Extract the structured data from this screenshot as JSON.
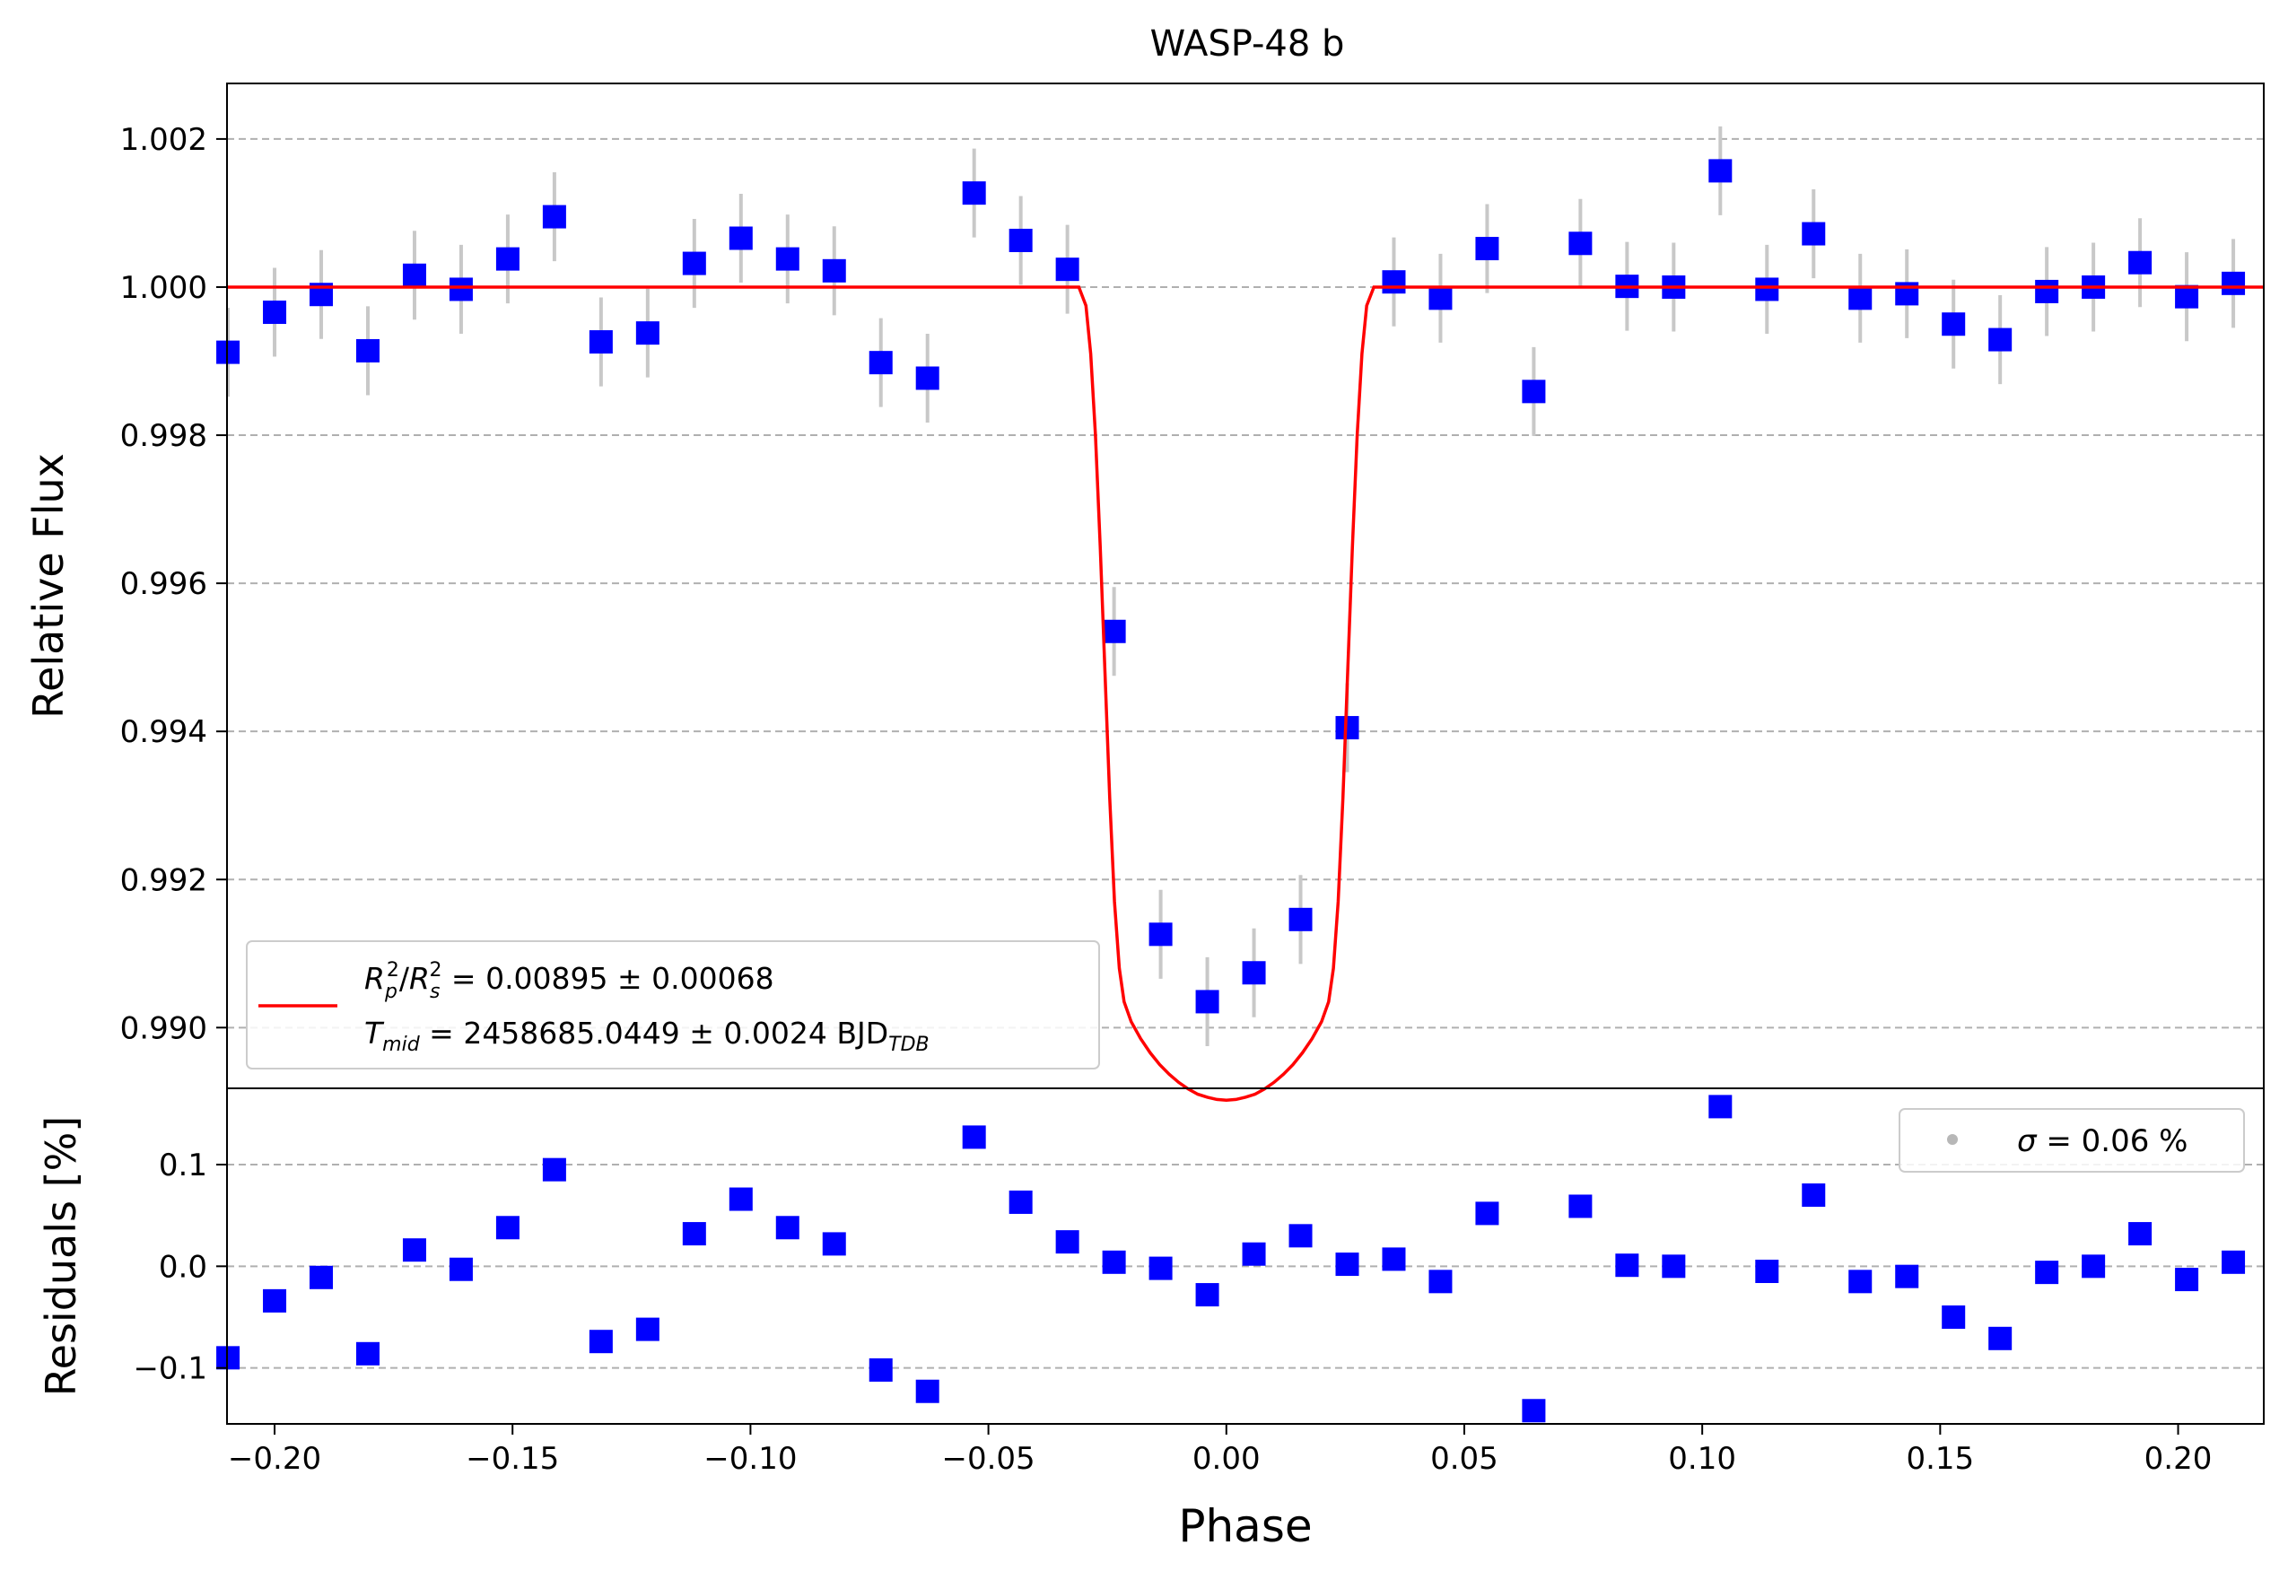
{
  "chart_data": [
    {
      "panel": "main",
      "type": "scatter",
      "title": "WASP-48 b",
      "xlabel": "",
      "ylabel": "Relative Flux",
      "xlim": [
        -0.21,
        0.218
      ],
      "ylim": [
        0.98918,
        1.00275
      ],
      "yticks": [
        0.99,
        0.992,
        0.994,
        0.996,
        0.998,
        1.0,
        1.002
      ],
      "ytick_labels": [
        "0.990",
        "0.992",
        "0.994",
        "0.996",
        "0.998",
        "1.000",
        "1.002"
      ],
      "grid": "y-dashed",
      "legend": {
        "placement": "lower-left",
        "entries": [
          {
            "line1_sym": "R",
            "line1_sub": "p",
            "line1_sup": "2",
            "line1_slash": "/",
            "line1_sym2": "R",
            "line1_sub2": "s",
            "line1_sup2": "2",
            "line1_rest": " = 0.00895 ± 0.00068"
          },
          {
            "line2_sym": "T",
            "line2_sub": "mid",
            "line2_rest": " = 2458685.0449 ± 0.0024 BJD",
            "line2_sub_end": "TDB"
          }
        ]
      },
      "colors": {
        "points": "#0000ff",
        "errorbars": "#c8c8c8",
        "model": "#ff0000",
        "grid": "#b0b0b0"
      },
      "series": [
        {
          "kind": "binned-data",
          "points": [
            {
              "x": -0.2098,
              "y": 0.99912,
              "err": 0.0006
            },
            {
              "x": -0.2,
              "y": 0.99966,
              "err": 0.0006
            },
            {
              "x": -0.1902,
              "y": 0.9999,
              "err": 0.0006
            },
            {
              "x": -0.1804,
              "y": 0.99914,
              "err": 0.0006
            },
            {
              "x": -0.1706,
              "y": 1.00016,
              "err": 0.0006
            },
            {
              "x": -0.1608,
              "y": 0.99997,
              "err": 0.0006
            },
            {
              "x": -0.151,
              "y": 1.00038,
              "err": 0.0006
            },
            {
              "x": -0.1412,
              "y": 1.00095,
              "err": 0.0006
            },
            {
              "x": -0.1314,
              "y": 0.99926,
              "err": 0.0006
            },
            {
              "x": -0.1216,
              "y": 0.99938,
              "err": 0.0006
            },
            {
              "x": -0.1118,
              "y": 1.00032,
              "err": 0.0006
            },
            {
              "x": -0.102,
              "y": 1.00066,
              "err": 0.0006
            },
            {
              "x": -0.0922,
              "y": 1.00038,
              "err": 0.0006
            },
            {
              "x": -0.0824,
              "y": 1.00022,
              "err": 0.0006
            },
            {
              "x": -0.0726,
              "y": 0.99898,
              "err": 0.0006
            },
            {
              "x": -0.0628,
              "y": 0.99877,
              "err": 0.0006
            },
            {
              "x": -0.053,
              "y": 1.00127,
              "err": 0.0006
            },
            {
              "x": -0.0432,
              "y": 1.00063,
              "err": 0.0006
            },
            {
              "x": -0.0334,
              "y": 1.00024,
              "err": 0.0006
            },
            {
              "x": -0.0236,
              "y": 0.99535,
              "err": 0.0006
            },
            {
              "x": -0.0138,
              "y": 0.99126,
              "err": 0.0006
            },
            {
              "x": -0.004,
              "y": 0.99035,
              "err": 0.0006
            },
            {
              "x": 0.0058,
              "y": 0.99074,
              "err": 0.0006
            },
            {
              "x": 0.0156,
              "y": 0.99146,
              "err": 0.0006
            },
            {
              "x": 0.0254,
              "y": 0.99405,
              "err": 0.0006
            },
            {
              "x": 0.0352,
              "y": 1.00007,
              "err": 0.0006
            },
            {
              "x": 0.045,
              "y": 0.99985,
              "err": 0.0006
            },
            {
              "x": 0.0548,
              "y": 1.00052,
              "err": 0.0006
            },
            {
              "x": 0.0646,
              "y": 0.99859,
              "err": 0.0006
            },
            {
              "x": 0.0744,
              "y": 1.00059,
              "err": 0.0006
            },
            {
              "x": 0.0842,
              "y": 1.00001,
              "err": 0.0006
            },
            {
              "x": 0.094,
              "y": 1.0,
              "err": 0.0006
            },
            {
              "x": 0.1038,
              "y": 1.00157,
              "err": 0.0006
            },
            {
              "x": 0.1136,
              "y": 0.99997,
              "err": 0.0006
            },
            {
              "x": 0.1234,
              "y": 1.00072,
              "err": 0.0006
            },
            {
              "x": 0.1332,
              "y": 0.99985,
              "err": 0.0006
            },
            {
              "x": 0.143,
              "y": 0.99991,
              "err": 0.0006
            },
            {
              "x": 0.1528,
              "y": 0.9995,
              "err": 0.0006
            },
            {
              "x": 0.1626,
              "y": 0.99929,
              "err": 0.0006
            },
            {
              "x": 0.1724,
              "y": 0.99994,
              "err": 0.0006
            },
            {
              "x": 0.1822,
              "y": 1.0,
              "err": 0.0006
            },
            {
              "x": 0.192,
              "y": 1.00033,
              "err": 0.0006
            },
            {
              "x": 0.2018,
              "y": 0.99987,
              "err": 0.0006
            },
            {
              "x": 0.2116,
              "y": 1.00005,
              "err": 0.0006
            }
          ]
        },
        {
          "kind": "model",
          "x": [
            -0.21,
            -0.031,
            -0.0295,
            -0.0285,
            -0.0275,
            -0.0265,
            -0.0255,
            -0.0245,
            -0.0235,
            -0.0225,
            -0.0215,
            -0.02,
            -0.018,
            -0.016,
            -0.014,
            -0.012,
            -0.01,
            -0.008,
            -0.006,
            -0.004,
            -0.002,
            0.0,
            0.002,
            0.004,
            0.006,
            0.008,
            0.01,
            0.012,
            0.014,
            0.016,
            0.018,
            0.02,
            0.0215,
            0.0225,
            0.0235,
            0.0245,
            0.0255,
            0.0265,
            0.0275,
            0.0285,
            0.0295,
            0.031,
            0.218
          ],
          "y": [
            1.0,
            1.0,
            0.99975,
            0.9991,
            0.998,
            0.9965,
            0.9948,
            0.9931,
            0.9917,
            0.9908,
            0.99035,
            0.99008,
            0.98985,
            0.98966,
            0.9895,
            0.98937,
            0.98926,
            0.98917,
            0.9891,
            0.98906,
            0.98903,
            0.98902,
            0.98903,
            0.98906,
            0.9891,
            0.98917,
            0.98926,
            0.98937,
            0.9895,
            0.98966,
            0.98985,
            0.99008,
            0.99035,
            0.9908,
            0.9917,
            0.9931,
            0.9948,
            0.9965,
            0.998,
            0.9991,
            0.99975,
            1.0,
            1.0
          ]
        }
      ]
    },
    {
      "panel": "residuals",
      "type": "scatter",
      "xlabel": "Phase",
      "ylabel": "Residuals [%]",
      "xlim": [
        -0.21,
        0.218
      ],
      "ylim": [
        -0.155,
        0.175
      ],
      "yticks": [
        -0.1,
        0.0,
        0.1
      ],
      "ytick_labels": [
        "−0.1",
        "0.0",
        "0.1"
      ],
      "xticks": [
        -0.2,
        -0.15,
        -0.1,
        -0.05,
        0.0,
        0.05,
        0.1,
        0.15,
        0.2
      ],
      "xtick_labels": [
        "−0.20",
        "−0.15",
        "−0.10",
        "−0.05",
        "0.00",
        "0.05",
        "0.10",
        "0.15",
        "0.20"
      ],
      "grid": "y-dashed",
      "legend": {
        "placement": "upper-right",
        "sigma_symbol": "σ",
        "label_rest": " = 0.06 %"
      },
      "x": [
        -0.2098,
        -0.2,
        -0.1902,
        -0.1804,
        -0.1706,
        -0.1608,
        -0.151,
        -0.1412,
        -0.1314,
        -0.1216,
        -0.1118,
        -0.102,
        -0.0922,
        -0.0824,
        -0.0726,
        -0.0628,
        -0.053,
        -0.0432,
        -0.0334,
        -0.0236,
        -0.0138,
        -0.004,
        0.0058,
        0.0156,
        0.0254,
        0.0352,
        0.045,
        0.0548,
        0.0646,
        0.0744,
        0.0842,
        0.094,
        0.1038,
        0.1136,
        0.1234,
        0.1332,
        0.143,
        0.1528,
        0.1626,
        0.1724,
        0.1822,
        0.192,
        0.2018,
        0.2116
      ],
      "values": [
        -0.09,
        -0.034,
        -0.011,
        -0.086,
        0.016,
        -0.003,
        0.038,
        0.095,
        -0.074,
        -0.062,
        0.032,
        0.066,
        0.038,
        0.022,
        -0.102,
        -0.123,
        0.127,
        0.063,
        0.024,
        0.004,
        -0.002,
        -0.028,
        0.012,
        0.03,
        0.002,
        0.007,
        -0.015,
        0.052,
        -0.142,
        0.059,
        0.001,
        0.0,
        0.157,
        -0.005,
        0.07,
        -0.015,
        -0.01,
        -0.05,
        -0.071,
        -0.006,
        0.0,
        0.032,
        -0.013,
        0.004
      ]
    }
  ]
}
